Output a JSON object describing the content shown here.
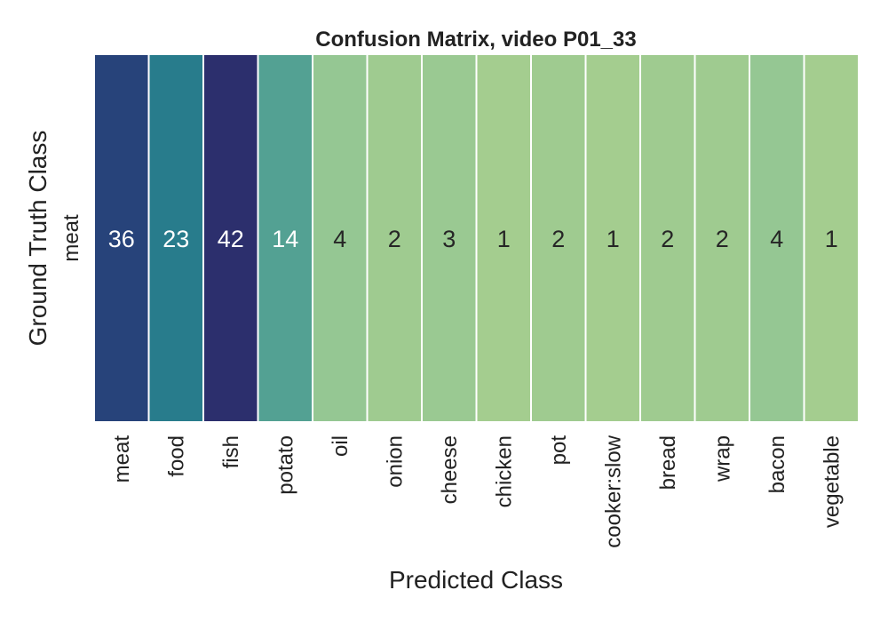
{
  "chart_data": {
    "type": "heatmap",
    "title": "Confusion Matrix, video P01_33",
    "xlabel": "Predicted Class",
    "ylabel": "Ground Truth Class",
    "row_labels": [
      "meat"
    ],
    "column_labels": [
      "meat",
      "food",
      "fish",
      "potato",
      "oil",
      "onion",
      "cheese",
      "chicken",
      "pot",
      "cooker:slow",
      "bread",
      "wrap",
      "bacon",
      "vegetable"
    ],
    "values": [
      [
        36,
        23,
        42,
        14,
        4,
        2,
        3,
        1,
        2,
        1,
        2,
        2,
        4,
        1
      ]
    ],
    "colormap": "crest",
    "colors": {
      "low": "#a4cd8f",
      "mid_low": "#8fc595",
      "mid": "#4f9f93",
      "mid_high": "#257a8c",
      "high": "#27447a",
      "max": "#2c2f6d",
      "cell_border": "#ffffff",
      "text_dark": "#262626",
      "text_light": "#ffffff"
    },
    "colorbar": false,
    "grid": false
  }
}
